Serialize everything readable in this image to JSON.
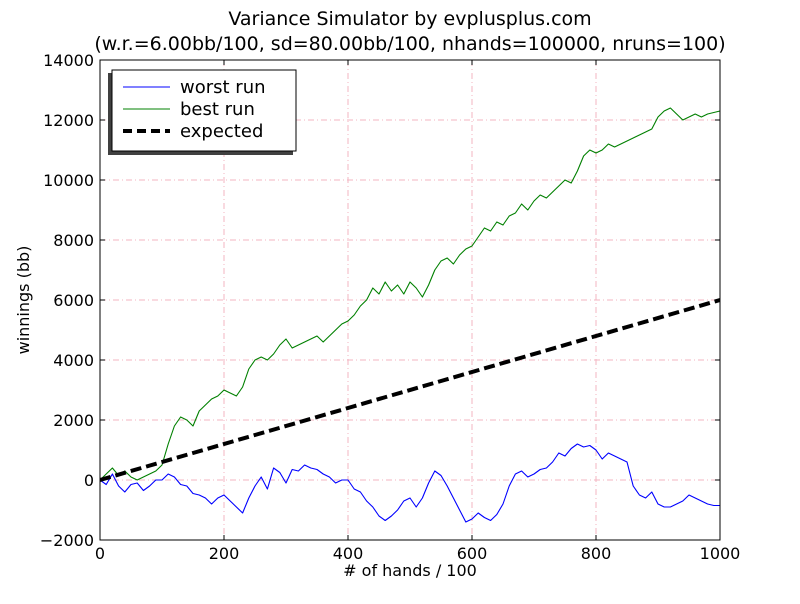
{
  "chart_data": {
    "type": "line",
    "title": "Variance Simulator by evplusplus.com",
    "subtitle": "(w.r.=6.00bb/100, sd=80.00bb/100, nhands=100000, nruns=100)",
    "xlabel": "# of hands / 100",
    "ylabel": "winnings (bb)",
    "xlim": [
      0,
      1000
    ],
    "ylim": [
      -2000,
      14000
    ],
    "x_ticks": [
      "0",
      "200",
      "400",
      "600",
      "800",
      "1000"
    ],
    "y_ticks": [
      "−2000",
      "0",
      "2000",
      "4000",
      "6000",
      "8000",
      "10000",
      "12000",
      "14000"
    ],
    "grid": true,
    "legend_position": "top-left",
    "series": [
      {
        "name": "worst run",
        "color": "#0000ff",
        "style": "solid",
        "x": [
          0,
          10,
          20,
          30,
          40,
          50,
          60,
          70,
          80,
          90,
          100,
          110,
          120,
          130,
          140,
          150,
          160,
          170,
          180,
          190,
          200,
          210,
          220,
          230,
          240,
          250,
          260,
          270,
          280,
          290,
          300,
          310,
          320,
          330,
          340,
          350,
          360,
          370,
          380,
          390,
          400,
          410,
          420,
          430,
          440,
          450,
          460,
          470,
          480,
          490,
          500,
          510,
          520,
          530,
          540,
          550,
          560,
          570,
          580,
          590,
          600,
          610,
          620,
          630,
          640,
          650,
          660,
          670,
          680,
          690,
          700,
          710,
          720,
          730,
          740,
          750,
          760,
          770,
          780,
          790,
          800,
          810,
          820,
          830,
          840,
          850,
          860,
          870,
          880,
          890,
          900,
          910,
          920,
          930,
          940,
          950,
          960,
          970,
          980,
          990,
          1000
        ],
        "y": [
          0,
          -150,
          200,
          -200,
          -400,
          -150,
          -100,
          -350,
          -200,
          0,
          0,
          200,
          100,
          -150,
          -200,
          -450,
          -500,
          -600,
          -800,
          -600,
          -500,
          -700,
          -900,
          -1100,
          -600,
          -200,
          100,
          -300,
          400,
          250,
          -100,
          350,
          300,
          500,
          400,
          350,
          200,
          100,
          -100,
          0,
          0,
          -300,
          -400,
          -700,
          -900,
          -1200,
          -1350,
          -1200,
          -1000,
          -700,
          -600,
          -900,
          -600,
          -100,
          300,
          150,
          -200,
          -600,
          -1000,
          -1400,
          -1300,
          -1100,
          -1250,
          -1350,
          -1150,
          -800,
          -200,
          200,
          300,
          100,
          200,
          350,
          400,
          600,
          900,
          800,
          1050,
          1200,
          1100,
          1150,
          1000,
          700,
          900,
          800,
          700,
          600,
          -200,
          -500,
          -600,
          -400,
          -800,
          -900,
          -900,
          -800,
          -700,
          -500,
          -600,
          -700,
          -800,
          -850,
          -850
        ]
      },
      {
        "name": "best run",
        "color": "#008000",
        "style": "solid",
        "x": [
          0,
          10,
          20,
          30,
          40,
          50,
          60,
          70,
          80,
          90,
          100,
          110,
          120,
          130,
          140,
          150,
          160,
          170,
          180,
          190,
          200,
          210,
          220,
          230,
          240,
          250,
          260,
          270,
          280,
          290,
          300,
          310,
          320,
          330,
          340,
          350,
          360,
          370,
          380,
          390,
          400,
          410,
          420,
          430,
          440,
          450,
          460,
          470,
          480,
          490,
          500,
          510,
          520,
          530,
          540,
          550,
          560,
          570,
          580,
          590,
          600,
          610,
          620,
          630,
          640,
          650,
          660,
          670,
          680,
          690,
          700,
          710,
          720,
          730,
          740,
          750,
          760,
          770,
          780,
          790,
          800,
          810,
          820,
          830,
          840,
          850,
          860,
          870,
          880,
          890,
          900,
          910,
          920,
          930,
          940,
          950,
          960,
          970,
          980,
          990,
          1000
        ],
        "y": [
          0,
          200,
          400,
          150,
          300,
          100,
          0,
          100,
          200,
          300,
          500,
          1200,
          1800,
          2100,
          2000,
          1800,
          2300,
          2500,
          2700,
          2800,
          3000,
          2900,
          2800,
          3100,
          3700,
          4000,
          4100,
          4000,
          4200,
          4500,
          4700,
          4400,
          4500,
          4600,
          4700,
          4800,
          4600,
          4800,
          5000,
          5200,
          5300,
          5500,
          5800,
          6000,
          6400,
          6200,
          6600,
          6300,
          6500,
          6200,
          6600,
          6400,
          6100,
          6500,
          7000,
          7300,
          7400,
          7200,
          7500,
          7700,
          7800,
          8100,
          8400,
          8300,
          8600,
          8500,
          8800,
          8900,
          9200,
          9000,
          9300,
          9500,
          9400,
          9600,
          9800,
          10000,
          9900,
          10300,
          10800,
          11000,
          10900,
          11000,
          11200,
          11100,
          11200,
          11300,
          11400,
          11500,
          11600,
          11700,
          12100,
          12300,
          12400,
          12200,
          12000,
          12100,
          12200,
          12100,
          12200,
          12250,
          12300
        ]
      },
      {
        "name": "expected",
        "color": "#000000",
        "style": "dashed",
        "x": [
          0,
          1000
        ],
        "y": [
          0,
          6000
        ]
      }
    ]
  }
}
